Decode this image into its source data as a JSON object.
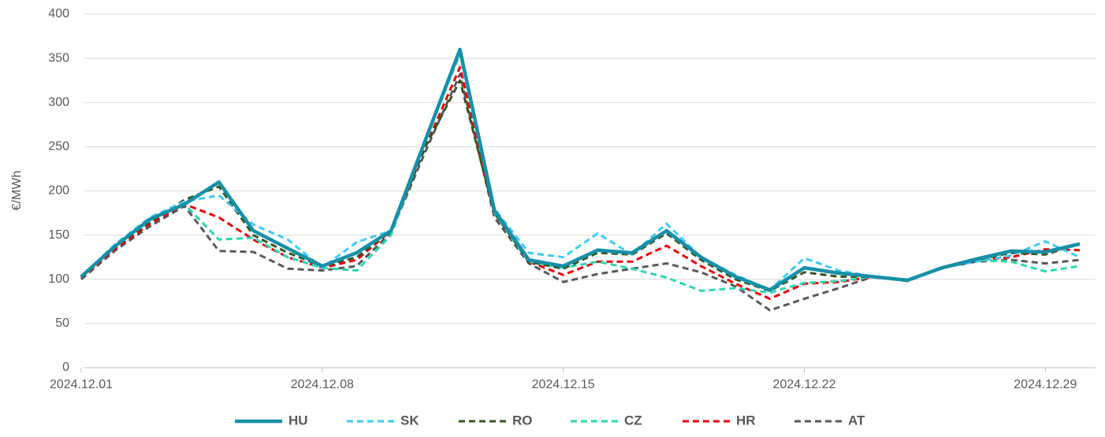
{
  "chart_data": {
    "type": "line",
    "ylabel": "€/MWh",
    "categories": [
      "2024.12.01",
      null,
      null,
      null,
      null,
      null,
      null,
      "2024.12.08",
      null,
      null,
      null,
      null,
      null,
      null,
      "2024.12.15",
      null,
      null,
      null,
      null,
      null,
      null,
      "2024.12.22",
      null,
      null,
      null,
      null,
      null,
      null,
      "2024.12.29",
      null
    ],
    "series": [
      {
        "name": "HU",
        "color": "#1690a8",
        "dashed": false,
        "values": [
          103,
          138,
          168,
          185,
          210,
          155,
          135,
          115,
          130,
          155,
          258,
          360,
          178,
          122,
          115,
          133,
          130,
          155,
          125,
          103,
          88,
          113,
          107,
          103,
          99,
          113,
          123,
          132,
          131,
          140
        ]
      },
      {
        "name": "SK",
        "color": "#3fcbf0",
        "dashed": true,
        "values": [
          103,
          140,
          170,
          188,
          195,
          162,
          145,
          113,
          142,
          155,
          258,
          358,
          180,
          130,
          125,
          152,
          128,
          163,
          125,
          105,
          88,
          124,
          110,
          103,
          99,
          113,
          120,
          127,
          143,
          125
        ]
      },
      {
        "name": "RO",
        "color": "#375623",
        "dashed": true,
        "values": [
          102,
          137,
          165,
          190,
          205,
          150,
          130,
          115,
          125,
          155,
          250,
          325,
          175,
          120,
          112,
          130,
          128,
          152,
          122,
          100,
          87,
          108,
          103,
          103,
          99,
          113,
          122,
          130,
          128,
          140
        ]
      },
      {
        "name": "CZ",
        "color": "#2fd6b0",
        "dashed": true,
        "values": [
          103,
          140,
          170,
          185,
          145,
          147,
          125,
          113,
          110,
          150,
          258,
          355,
          175,
          120,
          113,
          120,
          112,
          102,
          87,
          90,
          85,
          96,
          98,
          103,
          99,
          113,
          122,
          120,
          109,
          115
        ]
      },
      {
        "name": "HR",
        "color": "#e8000b",
        "dashed": true,
        "values": [
          102,
          135,
          163,
          185,
          170,
          145,
          125,
          113,
          122,
          155,
          250,
          340,
          175,
          120,
          105,
          120,
          120,
          138,
          115,
          95,
          78,
          95,
          97,
          103,
          99,
          113,
          122,
          125,
          134,
          133
        ]
      },
      {
        "name": "AT",
        "color": "#595959",
        "dashed": true,
        "values": [
          100,
          133,
          160,
          183,
          132,
          131,
          112,
          110,
          115,
          153,
          245,
          332,
          170,
          118,
          97,
          106,
          112,
          118,
          108,
          92,
          65,
          78,
          90,
          103,
          98,
          113,
          120,
          122,
          118,
          122
        ]
      }
    ],
    "ylim": [
      0,
      400
    ],
    "yticks": [
      0,
      50,
      100,
      150,
      200,
      250,
      300,
      350,
      400
    ],
    "grid": true,
    "legend": "bottom"
  }
}
